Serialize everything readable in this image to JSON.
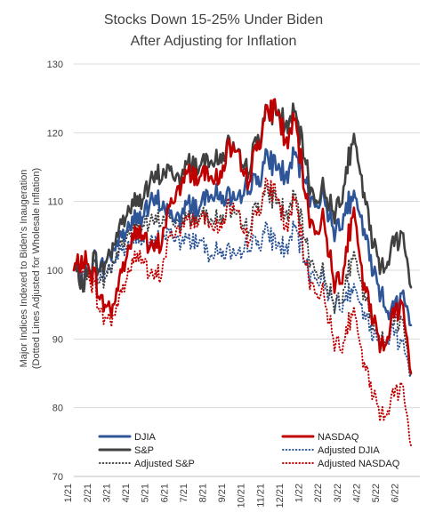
{
  "chart_data": {
    "type": "line",
    "title_lines": [
      "Stocks Down 15-25% Under Biden",
      "After Adjusting for Inflation"
    ],
    "ylabel_lines": [
      "Major Indices Indexed to Biden's Inaugeration",
      "(Dotted Lines Adjusted for Wholesale Inflation)"
    ],
    "xlabel": "",
    "ylim": [
      70,
      130
    ],
    "yticks": [
      70,
      80,
      90,
      100,
      110,
      120,
      130
    ],
    "grid": "horizontal",
    "legend_placement": "bottom",
    "x_tick_labels": [
      "1/21",
      "2/21",
      "3/21",
      "4/21",
      "5/21",
      "6/21",
      "7/21",
      "8/21",
      "9/21",
      "10/21",
      "11/21",
      "12/21",
      "1/22",
      "2/22",
      "3/22",
      "4/22",
      "5/22",
      "6/22"
    ],
    "x_anchor_points": [
      "1/21",
      "1/21",
      "2/21",
      "2/21",
      "3/21",
      "3/21",
      "4/21",
      "4/21",
      "5/21",
      "5/21",
      "6/21",
      "6/21",
      "7/21",
      "7/21",
      "8/21",
      "8/21",
      "9/21",
      "9/21",
      "10/21",
      "10/21",
      "11/21",
      "11/21",
      "12/21",
      "12/21",
      "1/22",
      "1/22",
      "2/22",
      "2/22",
      "3/22",
      "3/22",
      "4/22",
      "4/22",
      "5/22",
      "5/22",
      "6/22",
      "6/22"
    ],
    "series": [
      {
        "name": "DJIA",
        "color": "#2E5597",
        "style": "solid",
        "values": [
          100,
          98.5,
          101.5,
          100.5,
          103,
          105,
          107,
          108,
          109.5,
          110,
          108,
          107.5,
          110,
          109,
          112,
          110.5,
          111,
          109,
          112.5,
          113,
          116,
          115.5,
          113.5,
          116.5,
          113,
          109.5,
          111,
          105.5,
          108.5,
          110.5,
          106.5,
          100,
          96.5,
          93.5,
          97,
          92
        ]
      },
      {
        "name": "NASDAQ",
        "color": "#C00000",
        "style": "solid",
        "values": [
          100,
          101.5,
          99.5,
          95,
          94.5,
          100,
          104.5,
          106,
          102.5,
          104,
          109.5,
          112,
          114.5,
          113.5,
          115,
          112.5,
          118,
          116,
          113,
          118,
          122.5,
          124,
          118.5,
          121.5,
          111,
          105.5,
          107.5,
          98,
          100.5,
          108.5,
          98.5,
          93,
          89,
          92.5,
          96,
          85
        ]
      },
      {
        "name": "S&P",
        "color": "#404040",
        "style": "solid",
        "values": [
          100,
          98,
          101.5,
          100,
          103.5,
          107,
          109.5,
          110.5,
          112.5,
          114,
          114.5,
          113,
          116,
          115,
          117,
          115.5,
          118.5,
          116,
          114.5,
          119,
          122.5,
          123.5,
          121,
          122.5,
          116,
          110,
          112,
          108,
          112.5,
          119,
          112,
          104,
          100.5,
          103,
          106,
          97.5
        ]
      },
      {
        "name": "Adjusted DJIA",
        "color": "#2E5597",
        "style": "dotted",
        "values": [
          100,
          98,
          100.5,
          99,
          101,
          103,
          104,
          105,
          103.5,
          104.5,
          105.5,
          104,
          104.5,
          104.5,
          103,
          102.5,
          103,
          101,
          104,
          104,
          105.5,
          104,
          103,
          106,
          101,
          99,
          98.5,
          95,
          96,
          97,
          94,
          90.5,
          89.5,
          91,
          90,
          84.5
        ]
      },
      {
        "name": "Adjusted NASDAQ",
        "color": "#C00000",
        "style": "dotted",
        "values": [
          100,
          100.5,
          98,
          93,
          93,
          97,
          101,
          102.5,
          98.5,
          99.5,
          105,
          106,
          107.5,
          107.5,
          108,
          105.5,
          109.5,
          107.5,
          104.5,
          108.5,
          112,
          111.5,
          106,
          110,
          101,
          97,
          96.5,
          89.5,
          90,
          94,
          87,
          82,
          79,
          81,
          84,
          74.5
        ]
      },
      {
        "name": "Adjusted S&P",
        "color": "#404040",
        "style": "dotted",
        "values": [
          100,
          97.5,
          100.5,
          98,
          101,
          104,
          106,
          107,
          106.5,
          107.5,
          107.5,
          106.5,
          108,
          108,
          108.5,
          107,
          109,
          107,
          106,
          109.5,
          111,
          110.5,
          108,
          110.5,
          104.5,
          100,
          99.5,
          95,
          97.5,
          102,
          97,
          92,
          90,
          92,
          93.5,
          84.5
        ]
      }
    ]
  }
}
